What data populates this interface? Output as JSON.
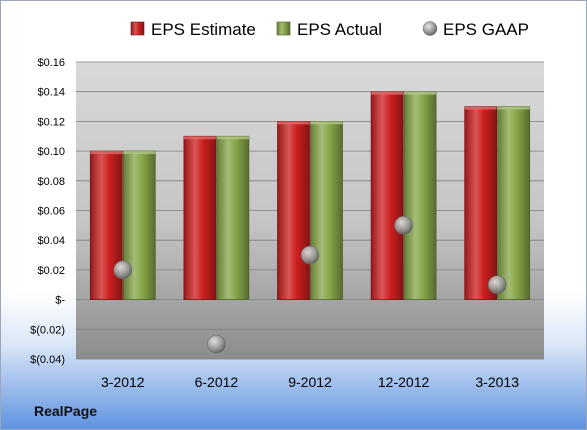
{
  "company": "RealPage",
  "chart_data": {
    "type": "bar",
    "categories": [
      "3-2012",
      "6-2012",
      "9-2012",
      "12-2012",
      "3-2013"
    ],
    "series": [
      {
        "name": "EPS Estimate",
        "kind": "bar",
        "color": "#cc1f1f",
        "values": [
          0.1,
          0.11,
          0.12,
          0.14,
          0.13
        ]
      },
      {
        "name": "EPS Actual",
        "kind": "bar",
        "color": "#86a647",
        "values": [
          0.1,
          0.11,
          0.12,
          0.14,
          0.13
        ]
      },
      {
        "name": "EPS GAAP",
        "kind": "marker",
        "color": "#8a8a8a",
        "values": [
          0.02,
          -0.03,
          0.03,
          0.05,
          0.01
        ]
      }
    ],
    "ylim": [
      -0.04,
      0.16
    ],
    "yticks": [
      {
        "value": 0.16,
        "label": "$0.16"
      },
      {
        "value": 0.14,
        "label": "$0.14"
      },
      {
        "value": 0.12,
        "label": "$0.12"
      },
      {
        "value": 0.1,
        "label": "$0.10"
      },
      {
        "value": 0.08,
        "label": "$0.08"
      },
      {
        "value": 0.06,
        "label": "$0.06"
      },
      {
        "value": 0.04,
        "label": "$0.04"
      },
      {
        "value": 0.02,
        "label": "$0.02"
      },
      {
        "value": 0.0,
        "label": "$-"
      },
      {
        "value": -0.02,
        "label": "$(0.02)"
      },
      {
        "value": -0.04,
        "label": "$(0.04)"
      }
    ],
    "grid": true,
    "legend": "top"
  }
}
